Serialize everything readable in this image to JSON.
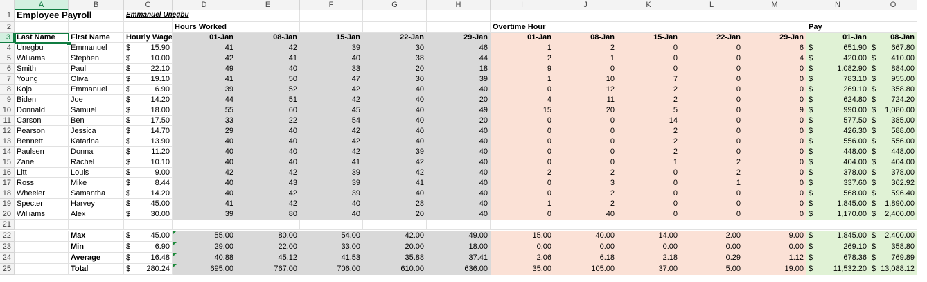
{
  "column_headers": [
    "A",
    "B",
    "C",
    "D",
    "E",
    "F",
    "G",
    "H",
    "I",
    "J",
    "K",
    "L",
    "M",
    "N",
    "O"
  ],
  "selected_cell": "A3",
  "title": "Employee Payroll",
  "author": "Emmanuel Unegbu",
  "section_headers": {
    "hours": "Hours Worked",
    "overtime": "Overtime Hour",
    "pay": "Pay"
  },
  "header_row": {
    "last_name": "Last Name",
    "first_name": "First Name",
    "hourly_wage": "Hourly Wage"
  },
  "dates": [
    "01-Jan",
    "08-Jan",
    "15-Jan",
    "22-Jan",
    "29-Jan"
  ],
  "pay_dates": [
    "01-Jan",
    "08-Jan"
  ],
  "currency_symbol": "$",
  "employees": [
    {
      "last": "Unegbu",
      "first": "Emmanuel",
      "wage": "15.90",
      "hours": [
        "41",
        "42",
        "39",
        "30",
        "46"
      ],
      "ot": [
        "1",
        "2",
        "0",
        "0",
        "6"
      ],
      "pay": [
        "651.90",
        "667.80"
      ]
    },
    {
      "last": "Williams",
      "first": "Stephen",
      "wage": "10.00",
      "hours": [
        "42",
        "41",
        "40",
        "38",
        "44"
      ],
      "ot": [
        "2",
        "1",
        "0",
        "0",
        "4"
      ],
      "pay": [
        "420.00",
        "410.00"
      ]
    },
    {
      "last": "Smith",
      "first": "Paul",
      "wage": "22.10",
      "hours": [
        "49",
        "40",
        "33",
        "20",
        "18"
      ],
      "ot": [
        "9",
        "0",
        "0",
        "0",
        "0"
      ],
      "pay": [
        "1,082.90",
        "884.00"
      ]
    },
    {
      "last": "Young",
      "first": "Oliva",
      "wage": "19.10",
      "hours": [
        "41",
        "50",
        "47",
        "30",
        "39"
      ],
      "ot": [
        "1",
        "10",
        "7",
        "0",
        "0"
      ],
      "pay": [
        "783.10",
        "955.00"
      ]
    },
    {
      "last": "Kojo",
      "first": "Emmanuel",
      "wage": "6.90",
      "hours": [
        "39",
        "52",
        "42",
        "40",
        "40"
      ],
      "ot": [
        "0",
        "12",
        "2",
        "0",
        "0"
      ],
      "pay": [
        "269.10",
        "358.80"
      ]
    },
    {
      "last": "Biden",
      "first": "Joe",
      "wage": "14.20",
      "hours": [
        "44",
        "51",
        "42",
        "40",
        "20"
      ],
      "ot": [
        "4",
        "11",
        "2",
        "0",
        "0"
      ],
      "pay": [
        "624.80",
        "724.20"
      ]
    },
    {
      "last": "Donnald",
      "first": "Samuel",
      "wage": "18.00",
      "hours": [
        "55",
        "60",
        "45",
        "40",
        "49"
      ],
      "ot": [
        "15",
        "20",
        "5",
        "0",
        "9"
      ],
      "pay": [
        "990.00",
        "1,080.00"
      ]
    },
    {
      "last": "Carson",
      "first": "Ben",
      "wage": "17.50",
      "hours": [
        "33",
        "22",
        "54",
        "40",
        "20"
      ],
      "ot": [
        "0",
        "0",
        "14",
        "0",
        "0"
      ],
      "pay": [
        "577.50",
        "385.00"
      ]
    },
    {
      "last": "Pearson",
      "first": "Jessica",
      "wage": "14.70",
      "hours": [
        "29",
        "40",
        "42",
        "40",
        "40"
      ],
      "ot": [
        "0",
        "0",
        "2",
        "0",
        "0"
      ],
      "pay": [
        "426.30",
        "588.00"
      ]
    },
    {
      "last": "Bennett",
      "first": "Katarina",
      "wage": "13.90",
      "hours": [
        "40",
        "40",
        "42",
        "40",
        "40"
      ],
      "ot": [
        "0",
        "0",
        "2",
        "0",
        "0"
      ],
      "pay": [
        "556.00",
        "556.00"
      ]
    },
    {
      "last": "Paulsen",
      "first": "Donna",
      "wage": "11.20",
      "hours": [
        "40",
        "40",
        "42",
        "39",
        "40"
      ],
      "ot": [
        "0",
        "0",
        "2",
        "0",
        "0"
      ],
      "pay": [
        "448.00",
        "448.00"
      ]
    },
    {
      "last": "Zane",
      "first": "Rachel",
      "wage": "10.10",
      "hours": [
        "40",
        "40",
        "41",
        "42",
        "40"
      ],
      "ot": [
        "0",
        "0",
        "1",
        "2",
        "0"
      ],
      "pay": [
        "404.00",
        "404.00"
      ]
    },
    {
      "last": "Litt",
      "first": "Louis",
      "wage": "9.00",
      "hours": [
        "42",
        "42",
        "39",
        "42",
        "40"
      ],
      "ot": [
        "2",
        "2",
        "0",
        "2",
        "0"
      ],
      "pay": [
        "378.00",
        "378.00"
      ]
    },
    {
      "last": "Ross",
      "first": "Mike",
      "wage": "8.44",
      "hours": [
        "40",
        "43",
        "39",
        "41",
        "40"
      ],
      "ot": [
        "0",
        "3",
        "0",
        "1",
        "0"
      ],
      "pay": [
        "337.60",
        "362.92"
      ]
    },
    {
      "last": "Wheeler",
      "first": "Samantha",
      "wage": "14.20",
      "hours": [
        "40",
        "42",
        "39",
        "40",
        "40"
      ],
      "ot": [
        "0",
        "2",
        "0",
        "0",
        "0"
      ],
      "pay": [
        "568.00",
        "596.40"
      ]
    },
    {
      "last": "Specter",
      "first": "Harvey",
      "wage": "45.00",
      "hours": [
        "41",
        "42",
        "40",
        "28",
        "40"
      ],
      "ot": [
        "1",
        "2",
        "0",
        "0",
        "0"
      ],
      "pay": [
        "1,845.00",
        "1,890.00"
      ]
    },
    {
      "last": "Williams",
      "first": "Alex",
      "wage": "30.00",
      "hours": [
        "39",
        "80",
        "40",
        "20",
        "40"
      ],
      "ot": [
        "0",
        "40",
        "0",
        "0",
        "0"
      ],
      "pay": [
        "1,170.00",
        "2,400.00"
      ]
    }
  ],
  "stats": [
    {
      "label": "Max",
      "wage": "45.00",
      "hours": [
        "55.00",
        "80.00",
        "54.00",
        "42.00",
        "49.00"
      ],
      "ot": [
        "15.00",
        "40.00",
        "14.00",
        "2.00",
        "9.00"
      ],
      "pay": [
        "1,845.00",
        "2,400.00"
      ]
    },
    {
      "label": "Min",
      "wage": "6.90",
      "hours": [
        "29.00",
        "22.00",
        "33.00",
        "20.00",
        "18.00"
      ],
      "ot": [
        "0.00",
        "0.00",
        "0.00",
        "0.00",
        "0.00"
      ],
      "pay": [
        "269.10",
        "358.80"
      ]
    },
    {
      "label": "Average",
      "wage": "16.48",
      "hours": [
        "40.88",
        "45.12",
        "41.53",
        "35.88",
        "37.41"
      ],
      "ot": [
        "2.06",
        "6.18",
        "2.18",
        "0.29",
        "1.12"
      ],
      "pay": [
        "678.36",
        "769.89"
      ]
    },
    {
      "label": "Total",
      "wage": "280.24",
      "hours": [
        "695.00",
        "767.00",
        "706.00",
        "610.00",
        "636.00"
      ],
      "ot": [
        "35.00",
        "105.00",
        "37.00",
        "5.00",
        "19.00"
      ],
      "pay": [
        "11,532.20",
        "13,088.12"
      ]
    }
  ],
  "colors": {
    "hours_fill": "#d9d9d9",
    "overtime_fill": "#fbe1d6",
    "pay_fill": "#e0f2d5",
    "selection": "#107c41"
  }
}
